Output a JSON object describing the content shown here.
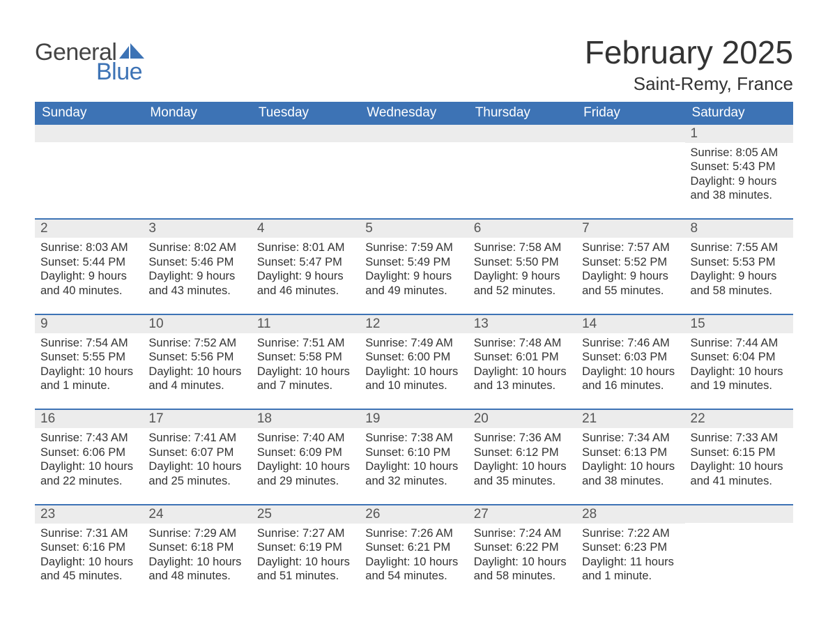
{
  "brand": {
    "word1": "General",
    "word2": "Blue",
    "word1_color": "#444444",
    "word2_color": "#3d73b5",
    "icon_color": "#3d73b5"
  },
  "title": "February 2025",
  "location": "Saint-Remy, France",
  "colors": {
    "header_bg": "#3d73b5",
    "header_text": "#ffffff",
    "daynum_bg": "#ececec",
    "daynum_text": "#555555",
    "body_text": "#333333",
    "row_divider": "#3d73b5",
    "page_bg": "#ffffff"
  },
  "typography": {
    "title_fontsize": 46,
    "location_fontsize": 26,
    "dayheader_fontsize": 19,
    "daynum_fontsize": 19,
    "body_fontsize": 16.5,
    "logo_fontsize": 34
  },
  "day_headers": [
    "Sunday",
    "Monday",
    "Tuesday",
    "Wednesday",
    "Thursday",
    "Friday",
    "Saturday"
  ],
  "weeks": [
    [
      {
        "n": "",
        "sunrise": "",
        "sunset": "",
        "daylight": ""
      },
      {
        "n": "",
        "sunrise": "",
        "sunset": "",
        "daylight": ""
      },
      {
        "n": "",
        "sunrise": "",
        "sunset": "",
        "daylight": ""
      },
      {
        "n": "",
        "sunrise": "",
        "sunset": "",
        "daylight": ""
      },
      {
        "n": "",
        "sunrise": "",
        "sunset": "",
        "daylight": ""
      },
      {
        "n": "",
        "sunrise": "",
        "sunset": "",
        "daylight": ""
      },
      {
        "n": "1",
        "sunrise": "Sunrise: 8:05 AM",
        "sunset": "Sunset: 5:43 PM",
        "daylight": "Daylight: 9 hours and 38 minutes."
      }
    ],
    [
      {
        "n": "2",
        "sunrise": "Sunrise: 8:03 AM",
        "sunset": "Sunset: 5:44 PM",
        "daylight": "Daylight: 9 hours and 40 minutes."
      },
      {
        "n": "3",
        "sunrise": "Sunrise: 8:02 AM",
        "sunset": "Sunset: 5:46 PM",
        "daylight": "Daylight: 9 hours and 43 minutes."
      },
      {
        "n": "4",
        "sunrise": "Sunrise: 8:01 AM",
        "sunset": "Sunset: 5:47 PM",
        "daylight": "Daylight: 9 hours and 46 minutes."
      },
      {
        "n": "5",
        "sunrise": "Sunrise: 7:59 AM",
        "sunset": "Sunset: 5:49 PM",
        "daylight": "Daylight: 9 hours and 49 minutes."
      },
      {
        "n": "6",
        "sunrise": "Sunrise: 7:58 AM",
        "sunset": "Sunset: 5:50 PM",
        "daylight": "Daylight: 9 hours and 52 minutes."
      },
      {
        "n": "7",
        "sunrise": "Sunrise: 7:57 AM",
        "sunset": "Sunset: 5:52 PM",
        "daylight": "Daylight: 9 hours and 55 minutes."
      },
      {
        "n": "8",
        "sunrise": "Sunrise: 7:55 AM",
        "sunset": "Sunset: 5:53 PM",
        "daylight": "Daylight: 9 hours and 58 minutes."
      }
    ],
    [
      {
        "n": "9",
        "sunrise": "Sunrise: 7:54 AM",
        "sunset": "Sunset: 5:55 PM",
        "daylight": "Daylight: 10 hours and 1 minute."
      },
      {
        "n": "10",
        "sunrise": "Sunrise: 7:52 AM",
        "sunset": "Sunset: 5:56 PM",
        "daylight": "Daylight: 10 hours and 4 minutes."
      },
      {
        "n": "11",
        "sunrise": "Sunrise: 7:51 AM",
        "sunset": "Sunset: 5:58 PM",
        "daylight": "Daylight: 10 hours and 7 minutes."
      },
      {
        "n": "12",
        "sunrise": "Sunrise: 7:49 AM",
        "sunset": "Sunset: 6:00 PM",
        "daylight": "Daylight: 10 hours and 10 minutes."
      },
      {
        "n": "13",
        "sunrise": "Sunrise: 7:48 AM",
        "sunset": "Sunset: 6:01 PM",
        "daylight": "Daylight: 10 hours and 13 minutes."
      },
      {
        "n": "14",
        "sunrise": "Sunrise: 7:46 AM",
        "sunset": "Sunset: 6:03 PM",
        "daylight": "Daylight: 10 hours and 16 minutes."
      },
      {
        "n": "15",
        "sunrise": "Sunrise: 7:44 AM",
        "sunset": "Sunset: 6:04 PM",
        "daylight": "Daylight: 10 hours and 19 minutes."
      }
    ],
    [
      {
        "n": "16",
        "sunrise": "Sunrise: 7:43 AM",
        "sunset": "Sunset: 6:06 PM",
        "daylight": "Daylight: 10 hours and 22 minutes."
      },
      {
        "n": "17",
        "sunrise": "Sunrise: 7:41 AM",
        "sunset": "Sunset: 6:07 PM",
        "daylight": "Daylight: 10 hours and 25 minutes."
      },
      {
        "n": "18",
        "sunrise": "Sunrise: 7:40 AM",
        "sunset": "Sunset: 6:09 PM",
        "daylight": "Daylight: 10 hours and 29 minutes."
      },
      {
        "n": "19",
        "sunrise": "Sunrise: 7:38 AM",
        "sunset": "Sunset: 6:10 PM",
        "daylight": "Daylight: 10 hours and 32 minutes."
      },
      {
        "n": "20",
        "sunrise": "Sunrise: 7:36 AM",
        "sunset": "Sunset: 6:12 PM",
        "daylight": "Daylight: 10 hours and 35 minutes."
      },
      {
        "n": "21",
        "sunrise": "Sunrise: 7:34 AM",
        "sunset": "Sunset: 6:13 PM",
        "daylight": "Daylight: 10 hours and 38 minutes."
      },
      {
        "n": "22",
        "sunrise": "Sunrise: 7:33 AM",
        "sunset": "Sunset: 6:15 PM",
        "daylight": "Daylight: 10 hours and 41 minutes."
      }
    ],
    [
      {
        "n": "23",
        "sunrise": "Sunrise: 7:31 AM",
        "sunset": "Sunset: 6:16 PM",
        "daylight": "Daylight: 10 hours and 45 minutes."
      },
      {
        "n": "24",
        "sunrise": "Sunrise: 7:29 AM",
        "sunset": "Sunset: 6:18 PM",
        "daylight": "Daylight: 10 hours and 48 minutes."
      },
      {
        "n": "25",
        "sunrise": "Sunrise: 7:27 AM",
        "sunset": "Sunset: 6:19 PM",
        "daylight": "Daylight: 10 hours and 51 minutes."
      },
      {
        "n": "26",
        "sunrise": "Sunrise: 7:26 AM",
        "sunset": "Sunset: 6:21 PM",
        "daylight": "Daylight: 10 hours and 54 minutes."
      },
      {
        "n": "27",
        "sunrise": "Sunrise: 7:24 AM",
        "sunset": "Sunset: 6:22 PM",
        "daylight": "Daylight: 10 hours and 58 minutes."
      },
      {
        "n": "28",
        "sunrise": "Sunrise: 7:22 AM",
        "sunset": "Sunset: 6:23 PM",
        "daylight": "Daylight: 11 hours and 1 minute."
      },
      {
        "n": "",
        "sunrise": "",
        "sunset": "",
        "daylight": ""
      }
    ]
  ]
}
